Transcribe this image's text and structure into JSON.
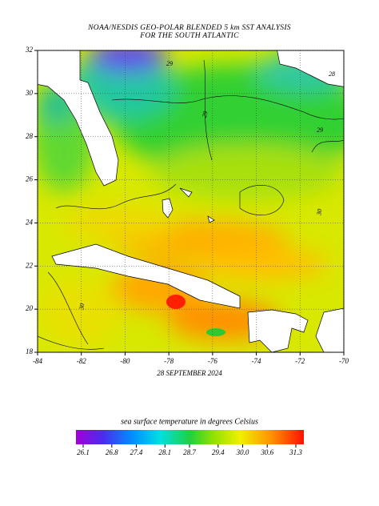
{
  "title": [
    "NOAA/NESDIS GEO-POLAR BLENDED 5 km SST ANALYSIS",
    "FOR THE SOUTH ATLANTIC"
  ],
  "map": {
    "xlim": [
      -84,
      -70
    ],
    "ylim": [
      18,
      32
    ],
    "xticks": [
      -84,
      -82,
      -80,
      -78,
      -76,
      -74,
      -72,
      -70
    ],
    "yticks": [
      18,
      20,
      22,
      24,
      26,
      28,
      30,
      32
    ],
    "date": "28 SEPTEMBER 2024",
    "contour_labels": [
      "29",
      "28",
      "29",
      "29",
      "30",
      "30"
    ]
  },
  "colorbar": {
    "label": "sea surface temperature in degrees Celsius",
    "lim": [
      26.1,
      31.3
    ],
    "ticks": [
      26.1,
      26.8,
      27.4,
      28.1,
      28.7,
      29.4,
      {
        "value": 30,
        "label": "30.0"
      },
      30.6,
      31.3
    ]
  }
}
